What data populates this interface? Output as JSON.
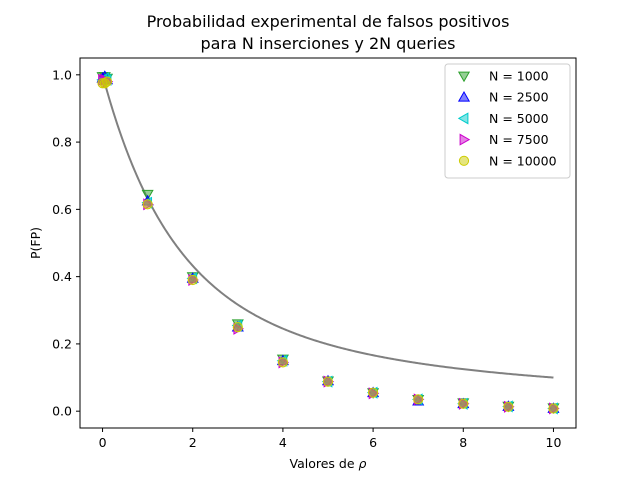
{
  "chart_data": {
    "type": "scatter",
    "title_line1": "Probabilidad experimental de falsos positivos",
    "title_line2": "para N inserciones y 2N queries",
    "xlabel": "Valores de",
    "xlabel_symbol": "ρ",
    "ylabel": "P(FP)",
    "xlim": [
      -0.5,
      10.5
    ],
    "ylim": [
      -0.05,
      1.05
    ],
    "xticks": [
      0,
      2,
      4,
      6,
      8,
      10
    ],
    "xtick_labels": [
      "0",
      "2",
      "4",
      "6",
      "8",
      "10"
    ],
    "yticks": [
      0.0,
      0.2,
      0.4,
      0.6,
      0.8,
      1.0
    ],
    "ytick_labels": [
      "0.0",
      "0.2",
      "0.4",
      "0.6",
      "0.8",
      "1.0"
    ],
    "grid": false,
    "legend_position": "top-right",
    "theory_curve_color": "#808080",
    "series": [
      {
        "name": "N = 1000",
        "marker": "triangle-down",
        "color": "#2ca02c",
        "x": [
          0,
          0.05,
          0.1,
          1,
          2,
          3,
          4,
          5,
          6,
          7,
          8,
          9,
          10
        ],
        "y": [
          0.995,
          0.995,
          0.99,
          0.645,
          0.4,
          0.26,
          0.155,
          0.09,
          0.055,
          0.035,
          0.025,
          0.015,
          0.01
        ]
      },
      {
        "name": "N = 2500",
        "marker": "triangle-up",
        "color": "#0000ff",
        "x": [
          0,
          0.05,
          0.1,
          1,
          2,
          3,
          4,
          5,
          6,
          7,
          8,
          9,
          10
        ],
        "y": [
          0.99,
          0.995,
          0.985,
          0.625,
          0.395,
          0.25,
          0.15,
          0.09,
          0.055,
          0.03,
          0.022,
          0.014,
          0.008
        ]
      },
      {
        "name": "N = 5000",
        "marker": "triangle-left",
        "color": "#00cccc",
        "x": [
          0,
          0.05,
          0.1,
          1,
          2,
          3,
          4,
          5,
          6,
          7,
          8,
          9,
          10
        ],
        "y": [
          0.985,
          0.99,
          0.985,
          0.62,
          0.395,
          0.255,
          0.15,
          0.088,
          0.055,
          0.035,
          0.022,
          0.014,
          0.008
        ]
      },
      {
        "name": "N = 7500",
        "marker": "triangle-right",
        "color": "#cc00cc",
        "x": [
          0,
          0.05,
          0.1,
          1,
          2,
          3,
          4,
          5,
          6,
          7,
          8,
          9,
          10
        ],
        "y": [
          0.985,
          0.985,
          0.98,
          0.615,
          0.39,
          0.245,
          0.145,
          0.088,
          0.053,
          0.035,
          0.022,
          0.013,
          0.008
        ]
      },
      {
        "name": "N = 10000",
        "marker": "circle",
        "color": "#cccc00",
        "x": [
          0,
          0.05,
          0.1,
          1,
          2,
          3,
          4,
          5,
          6,
          7,
          8,
          9,
          10
        ],
        "y": [
          0.975,
          0.975,
          0.98,
          0.615,
          0.39,
          0.25,
          0.145,
          0.088,
          0.055,
          0.035,
          0.022,
          0.013,
          0.008
        ]
      }
    ]
  }
}
